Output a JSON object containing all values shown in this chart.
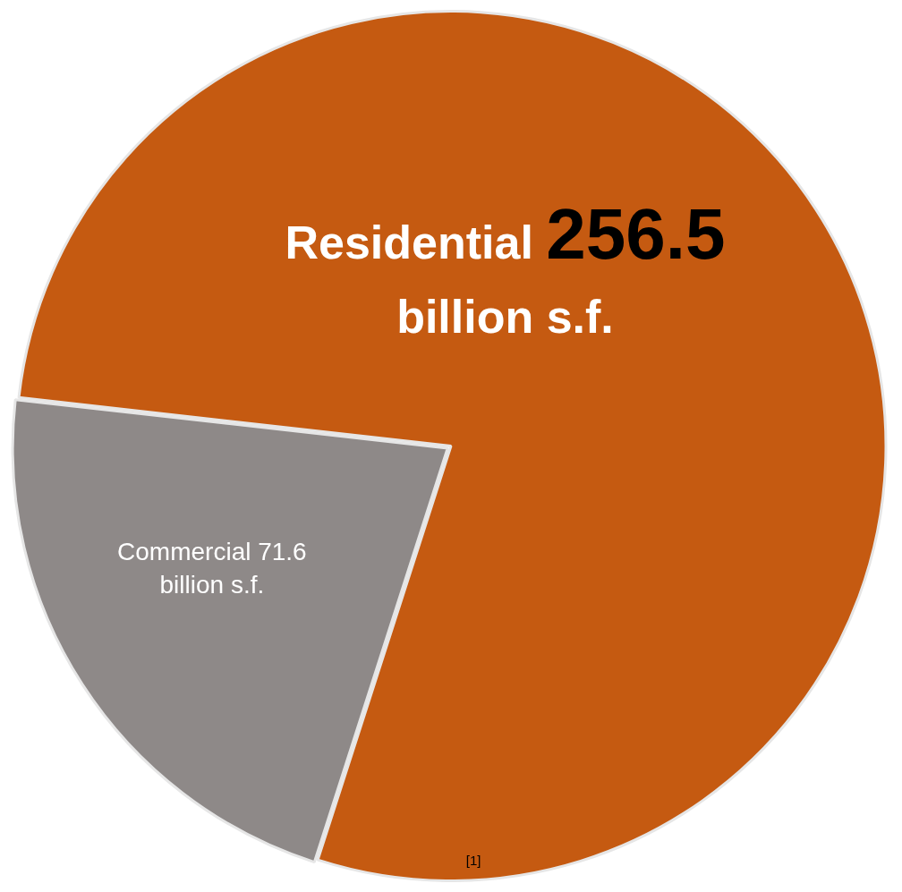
{
  "chart_data": {
    "type": "pie",
    "categories": [
      "Residential",
      "Commercial"
    ],
    "values": [
      256.5,
      71.6
    ],
    "value_labels": [
      "256.5 billion s.f.",
      "71.6 billion s.f."
    ],
    "colors": [
      "#c55a11",
      "#8e8988"
    ],
    "annotations": [
      "[1]"
    ]
  }
}
